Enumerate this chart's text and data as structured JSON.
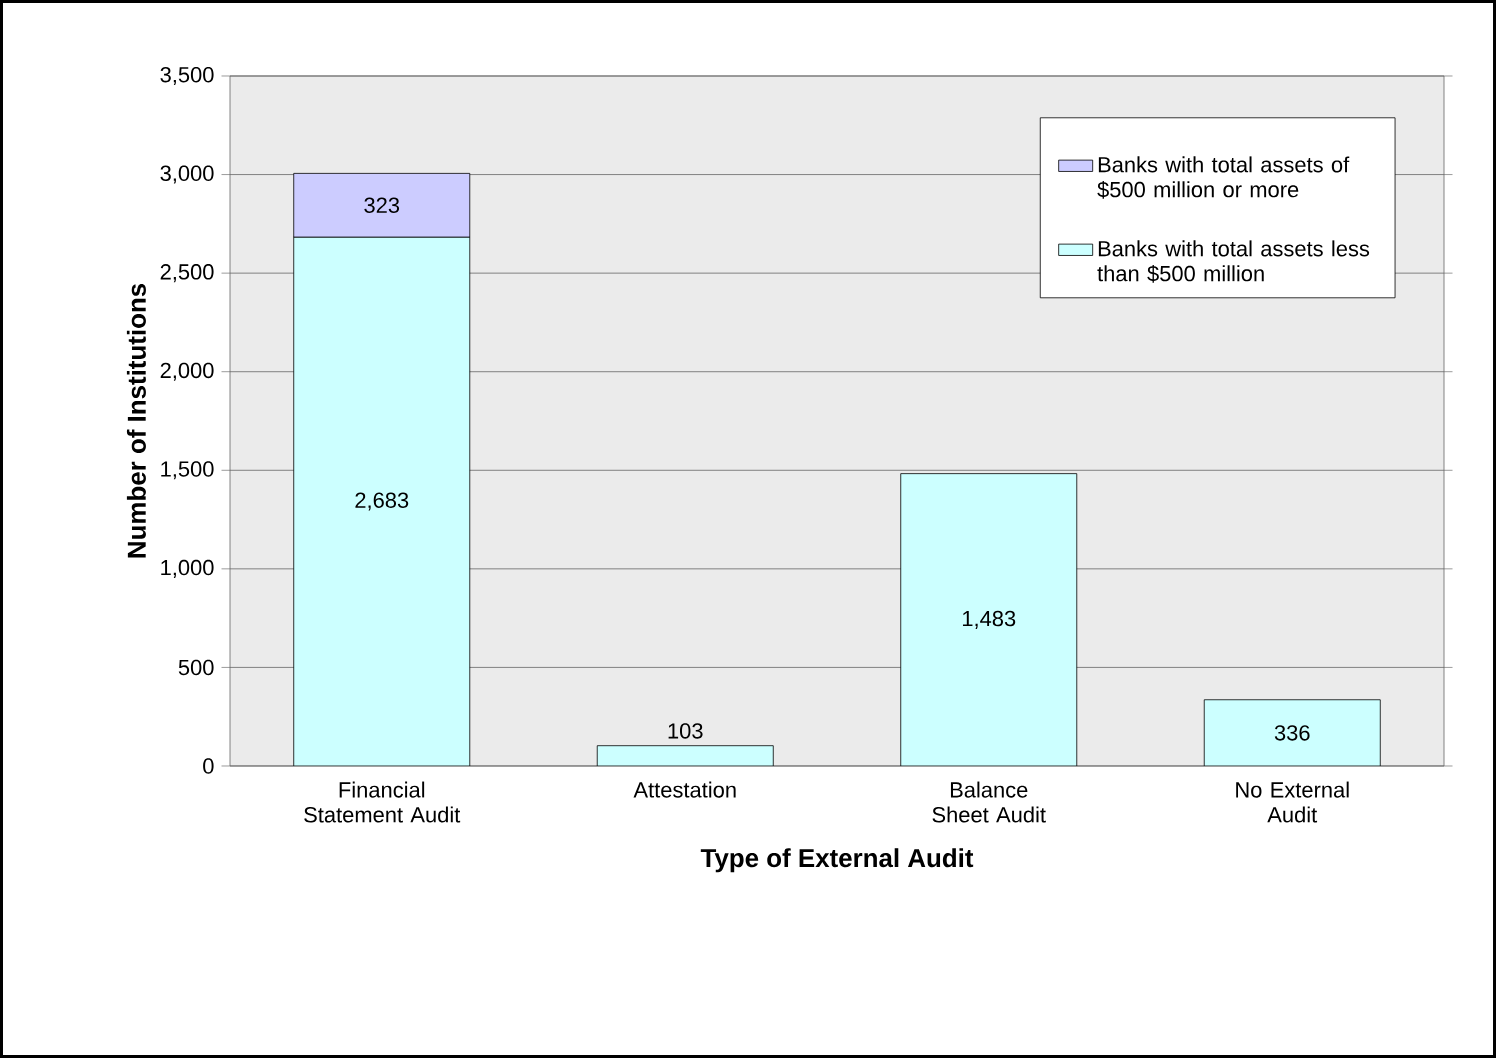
{
  "chart_data": {
    "type": "bar",
    "stacked": true,
    "xlabel": "Type of External Audit",
    "ylabel": "Number of Institutions",
    "categories": [
      "Financial Statement Audit",
      "Attestation",
      "Balance Sheet Audit",
      "No External Audit"
    ],
    "series": [
      {
        "name": "Banks with total assets less than $500 million",
        "color": "#ccffff",
        "values": [
          2683,
          103,
          1483,
          336
        ],
        "value_labels": [
          "2,683",
          "103",
          "1,483",
          "336"
        ]
      },
      {
        "name": "Banks with total assets of $500 million or more",
        "color": "#ccccff",
        "values": [
          323,
          null,
          null,
          null
        ],
        "value_labels": [
          "323",
          null,
          null,
          null
        ]
      }
    ],
    "ylim": [
      0,
      3500
    ],
    "yticks": [
      0,
      500,
      {
        "value": 1000,
        "label": "1,000"
      },
      {
        "value": 1500,
        "label": "1,500"
      },
      {
        "value": 2000,
        "label": "2,000"
      },
      {
        "value": 2500,
        "label": "2,500"
      },
      {
        "value": 3000,
        "label": "3,000"
      },
      {
        "value": 3500,
        "label": "3,500"
      }
    ],
    "grid": "y",
    "legend": "top right"
  }
}
